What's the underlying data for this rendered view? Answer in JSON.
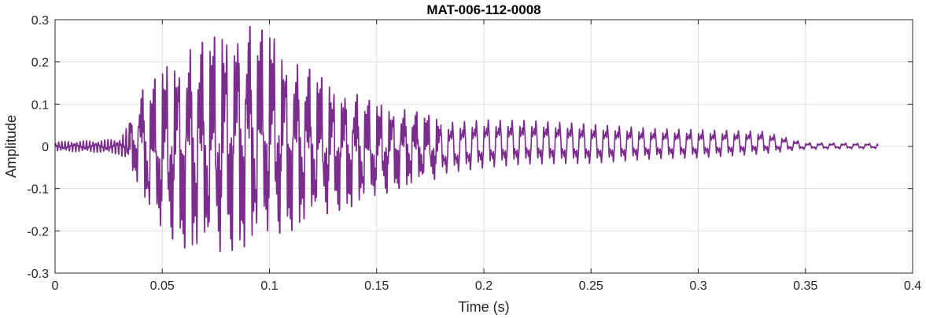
{
  "chart_data": {
    "type": "line",
    "title": "MAT-006-112-0008",
    "xlabel": "Time (s)",
    "ylabel": "Amplitude",
    "xlim": [
      0,
      0.4
    ],
    "ylim": [
      -0.3,
      0.3
    ],
    "grid": true,
    "x_ticks": [
      0,
      0.05,
      0.1,
      0.15,
      0.2,
      0.25,
      0.3,
      0.35,
      0.4
    ],
    "x_tick_labels": [
      "0",
      "0.05",
      "0.1",
      "0.15",
      "0.2",
      "0.25",
      "0.3",
      "0.35",
      "0.4"
    ],
    "y_ticks": [
      0.3,
      0.2,
      0.1,
      0,
      -0.1,
      -0.2,
      -0.3
    ],
    "y_tick_labels": [
      "0.3",
      "0.2",
      "0.1",
      "0",
      "-0.1",
      "-0.2",
      "-0.3"
    ],
    "series": [
      {
        "color": "#7b2d8e",
        "x_start": 0,
        "x_end": 0.384,
        "envelope_upper": [
          [
            0.0,
            0.012
          ],
          [
            0.02,
            0.015
          ],
          [
            0.03,
            0.02
          ],
          [
            0.035,
            0.06
          ],
          [
            0.04,
            0.13
          ],
          [
            0.045,
            0.15
          ],
          [
            0.05,
            0.18
          ],
          [
            0.06,
            0.22
          ],
          [
            0.07,
            0.25
          ],
          [
            0.08,
            0.27
          ],
          [
            0.09,
            0.285
          ],
          [
            0.1,
            0.27
          ],
          [
            0.11,
            0.2
          ],
          [
            0.12,
            0.18
          ],
          [
            0.13,
            0.14
          ],
          [
            0.14,
            0.125
          ],
          [
            0.15,
            0.1
          ],
          [
            0.16,
            0.09
          ],
          [
            0.17,
            0.08
          ],
          [
            0.18,
            0.065
          ],
          [
            0.2,
            0.072
          ],
          [
            0.22,
            0.07
          ],
          [
            0.25,
            0.06
          ],
          [
            0.28,
            0.048
          ],
          [
            0.3,
            0.045
          ],
          [
            0.33,
            0.04
          ],
          [
            0.35,
            0.01
          ],
          [
            0.384,
            0.008
          ]
        ],
        "envelope_lower": [
          [
            0.0,
            -0.012
          ],
          [
            0.02,
            -0.015
          ],
          [
            0.03,
            -0.02
          ],
          [
            0.035,
            -0.05
          ],
          [
            0.04,
            -0.1
          ],
          [
            0.045,
            -0.18
          ],
          [
            0.05,
            -0.2
          ],
          [
            0.06,
            -0.24
          ],
          [
            0.07,
            -0.245
          ],
          [
            0.08,
            -0.25
          ],
          [
            0.09,
            -0.235
          ],
          [
            0.1,
            -0.21
          ],
          [
            0.11,
            -0.2
          ],
          [
            0.12,
            -0.17
          ],
          [
            0.13,
            -0.155
          ],
          [
            0.14,
            -0.14
          ],
          [
            0.15,
            -0.12
          ],
          [
            0.16,
            -0.1
          ],
          [
            0.17,
            -0.085
          ],
          [
            0.18,
            -0.075
          ],
          [
            0.2,
            -0.06
          ],
          [
            0.22,
            -0.05
          ],
          [
            0.25,
            -0.048
          ],
          [
            0.28,
            -0.035
          ],
          [
            0.3,
            -0.033
          ],
          [
            0.33,
            -0.022
          ],
          [
            0.35,
            -0.008
          ],
          [
            0.384,
            -0.006
          ]
        ],
        "fundamental_hz": 180
      }
    ]
  }
}
